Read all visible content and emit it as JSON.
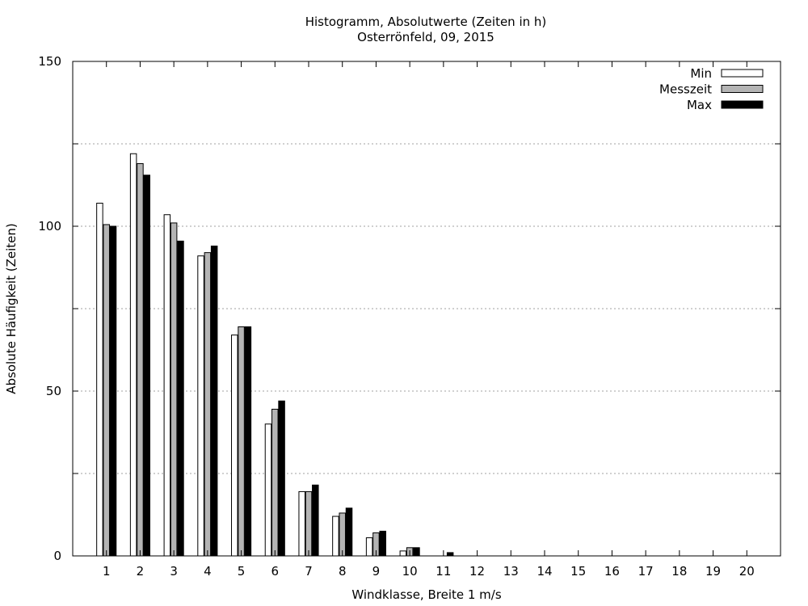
{
  "chart_data": {
    "type": "bar",
    "title": "Histogramm, Absolutwerte (Zeiten in h)",
    "subtitle": "Osterrönfeld, 09, 2015",
    "xlabel": "Windklasse, Breite 1 m/s",
    "ylabel": "Absolute Häufigkeit (Zeiten)",
    "ylim": [
      0,
      150
    ],
    "yticks": [
      0,
      50,
      100,
      150
    ],
    "grid_y": [
      25,
      50,
      75,
      100,
      125
    ],
    "categories": [
      "1",
      "2",
      "3",
      "4",
      "5",
      "6",
      "7",
      "8",
      "9",
      "10",
      "11",
      "12",
      "13",
      "14",
      "15",
      "16",
      "17",
      "18",
      "19",
      "20"
    ],
    "legend_position": "top-right",
    "series": [
      {
        "name": "Min",
        "color": "#ffffff",
        "values": [
          107,
          122,
          103.5,
          91,
          67,
          40,
          19.5,
          12,
          5.5,
          1.5,
          0,
          0,
          0,
          0,
          0,
          0,
          0,
          0,
          0,
          0
        ]
      },
      {
        "name": "Messzeit",
        "color": "#b4b4b4",
        "values": [
          100.5,
          119,
          101,
          92,
          69.5,
          44.5,
          19.5,
          13,
          7,
          2.5,
          0,
          0,
          0,
          0,
          0,
          0,
          0,
          0,
          0,
          0
        ]
      },
      {
        "name": "Max",
        "color": "#000000",
        "values": [
          100,
          115.5,
          95.5,
          94,
          69.5,
          47,
          21.5,
          14.5,
          7.5,
          2.5,
          1,
          0,
          0,
          0,
          0,
          0,
          0,
          0,
          0,
          0
        ]
      }
    ]
  }
}
